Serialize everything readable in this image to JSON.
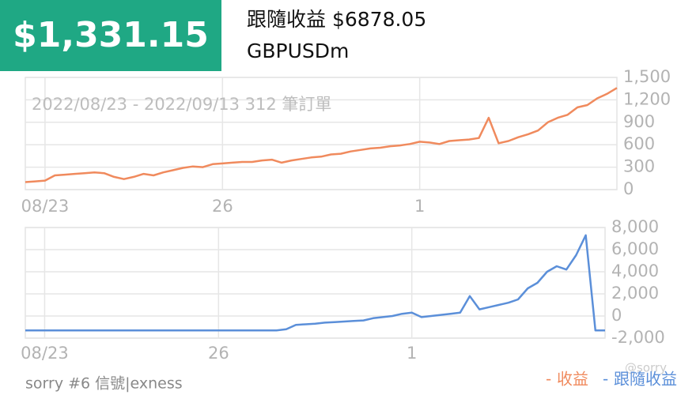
{
  "header": {
    "amount": "$1,331.15",
    "follow_profit": "跟隨收益 $6878.05",
    "symbol": "GBPUSDm"
  },
  "chart_data": [
    {
      "type": "line",
      "annotation": "2022/08/23 - 2022/09/13 312 筆訂單",
      "categories": [
        null,
        null,
        "08/23",
        null,
        null,
        null,
        null,
        null,
        null,
        null,
        null,
        null,
        null,
        null,
        null,
        null,
        null,
        null,
        null,
        null,
        "26",
        null,
        null,
        null,
        null,
        null,
        null,
        null,
        null,
        null,
        null,
        null,
        null,
        null,
        null,
        null,
        null,
        null,
        null,
        null,
        "1",
        null,
        null,
        null,
        null,
        null,
        null,
        null,
        null,
        null,
        null,
        null,
        null,
        null,
        null,
        null,
        null,
        null,
        null,
        null,
        null
      ],
      "series": [
        {
          "name": "收益",
          "color": "#f08a5d",
          "values": [
            100,
            110,
            120,
            190,
            200,
            210,
            220,
            230,
            220,
            170,
            140,
            170,
            210,
            190,
            230,
            260,
            290,
            310,
            300,
            340,
            350,
            360,
            370,
            370,
            390,
            400,
            360,
            390,
            410,
            430,
            440,
            470,
            480,
            510,
            530,
            550,
            560,
            580,
            590,
            610,
            640,
            630,
            610,
            650,
            660,
            670,
            690,
            960,
            620,
            650,
            700,
            740,
            790,
            900,
            960,
            1000,
            1100,
            1130,
            1220,
            1280,
            1360
          ]
        }
      ],
      "ylim": [
        0,
        1500
      ],
      "yticks": [
        {
          "value": 1500,
          "label": "1,500"
        },
        {
          "value": 1200,
          "label": "1,200"
        },
        900,
        600,
        300,
        0
      ],
      "grid": true
    },
    {
      "type": "line",
      "categories": [
        null,
        null,
        "08/23",
        null,
        null,
        null,
        null,
        null,
        null,
        null,
        null,
        null,
        null,
        null,
        null,
        null,
        null,
        null,
        null,
        null,
        "26",
        null,
        null,
        null,
        null,
        null,
        null,
        null,
        null,
        null,
        null,
        null,
        null,
        null,
        null,
        null,
        null,
        null,
        null,
        null,
        "1",
        null,
        null,
        null,
        null,
        null,
        null,
        null,
        null,
        null,
        null,
        null,
        null,
        null,
        null,
        null,
        null,
        null,
        null,
        null,
        null
      ],
      "series": [
        {
          "name": "跟隨收益",
          "color": "#5b8fd9",
          "values": [
            -1300,
            -1300,
            -1300,
            -1300,
            -1300,
            -1300,
            -1300,
            -1300,
            -1300,
            -1300,
            -1300,
            -1300,
            -1300,
            -1300,
            -1300,
            -1300,
            -1300,
            -1300,
            -1300,
            -1300,
            -1300,
            -1300,
            -1300,
            -1300,
            -1300,
            -1300,
            -1300,
            -1200,
            -800,
            -750,
            -700,
            -600,
            -550,
            -500,
            -450,
            -400,
            -200,
            -100,
            0,
            200,
            300,
            -100,
            0,
            100,
            200,
            300,
            1800,
            600,
            800,
            1000,
            1200,
            1500,
            2500,
            3000,
            4000,
            4500,
            4200,
            5500,
            7300,
            -1300,
            -1300
          ]
        }
      ],
      "ylim": [
        -2000,
        8000
      ],
      "yticks": [
        {
          "value": 8000,
          "label": "8,000"
        },
        {
          "value": 6000,
          "label": "6,000"
        },
        {
          "value": 4000,
          "label": "4,000"
        },
        {
          "value": 2000,
          "label": "2,000"
        },
        0,
        {
          "value": -2000,
          "label": "-2,000"
        }
      ],
      "grid": true
    }
  ],
  "footer": {
    "signal": "sorry #6 信號|exness",
    "watermark": "@sorry"
  }
}
